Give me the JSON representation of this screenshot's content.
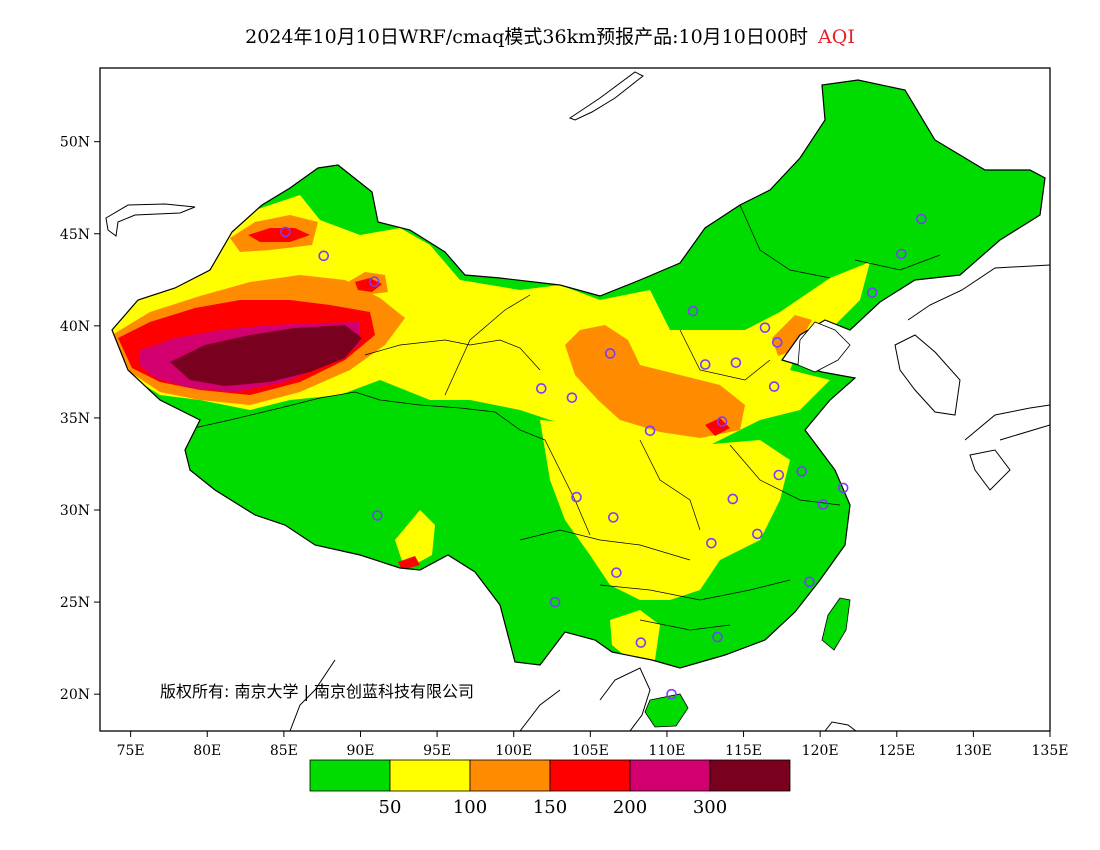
{
  "title": {
    "main": "2024年10月10日WRF/cmaq模式36km预报产品:10月10日00时",
    "variable": "AQI",
    "variable_color": "#e8202a"
  },
  "axes": {
    "x_ticks": [
      "75E",
      "80E",
      "85E",
      "90E",
      "95E",
      "100E",
      "105E",
      "110E",
      "115E",
      "120E",
      "125E",
      "130E",
      "135E"
    ],
    "x_values": [
      75,
      80,
      85,
      90,
      95,
      100,
      105,
      110,
      115,
      120,
      125,
      130,
      135
    ],
    "y_ticks": [
      "50N",
      "45N",
      "40N",
      "35N",
      "30N",
      "25N",
      "20N"
    ],
    "y_values": [
      50,
      45,
      40,
      35,
      30,
      25,
      20
    ],
    "lon_range": [
      73,
      135
    ],
    "lat_range": [
      18,
      54
    ]
  },
  "legend": {
    "colors": [
      "#00dc00",
      "#ffff00",
      "#ff8c00",
      "#ff0000",
      "#d2006e",
      "#7a0020"
    ],
    "labels": [
      "50",
      "100",
      "150",
      "200",
      "300"
    ]
  },
  "copyright": "版权所有: 南京大学 | 南京创蓝科技有限公司",
  "colors": {
    "good": "#00dc00",
    "moderate": "#ffff00",
    "usg": "#ff8c00",
    "unhealthy": "#ff0000",
    "very_unhealthy": "#d2006e",
    "hazardous": "#7a0020",
    "city_marker": "#7a3cff"
  },
  "city_markers": [
    [
      85.1,
      45.1
    ],
    [
      87.6,
      43.8
    ],
    [
      90.9,
      42.4
    ],
    [
      91.1,
      29.7
    ],
    [
      101.8,
      36.6
    ],
    [
      103.8,
      36.1
    ],
    [
      106.3,
      38.5
    ],
    [
      111.7,
      40.8
    ],
    [
      116.4,
      39.9
    ],
    [
      117.2,
      39.1
    ],
    [
      114.5,
      38.0
    ],
    [
      112.5,
      37.9
    ],
    [
      117.0,
      36.7
    ],
    [
      113.6,
      34.8
    ],
    [
      108.9,
      34.3
    ],
    [
      104.1,
      30.7
    ],
    [
      106.5,
      29.6
    ],
    [
      106.7,
      26.6
    ],
    [
      102.7,
      25.0
    ],
    [
      108.3,
      22.8
    ],
    [
      113.3,
      23.1
    ],
    [
      110.3,
      20.0
    ],
    [
      112.9,
      28.2
    ],
    [
      114.3,
      30.6
    ],
    [
      115.9,
      28.7
    ],
    [
      117.3,
      31.9
    ],
    [
      118.8,
      32.1
    ],
    [
      120.2,
      30.3
    ],
    [
      121.5,
      31.2
    ],
    [
      119.3,
      26.1
    ],
    [
      123.4,
      41.8
    ],
    [
      125.3,
      43.9
    ],
    [
      126.6,
      45.8
    ]
  ]
}
